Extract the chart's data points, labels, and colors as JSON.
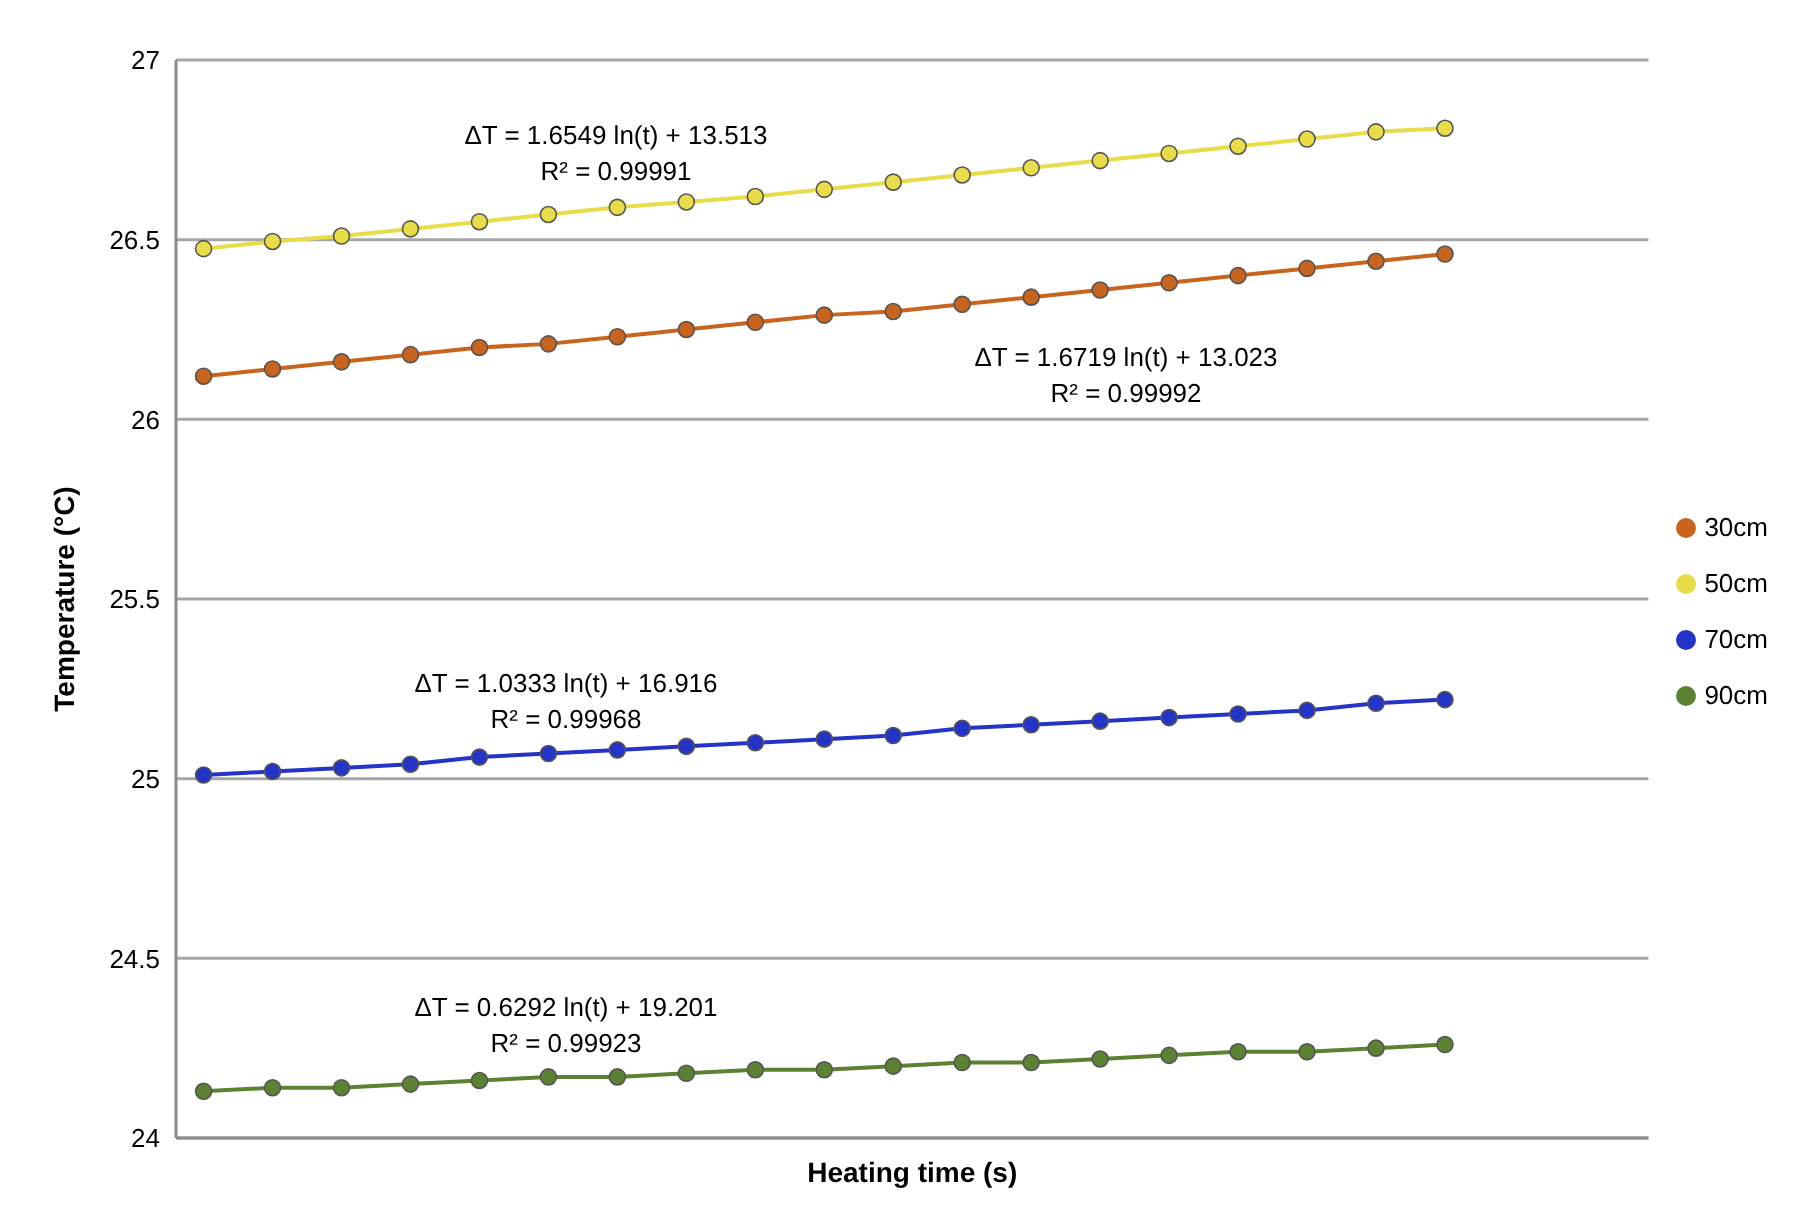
{
  "chart_data": {
    "type": "line",
    "xlabel": "Heating time (s)",
    "ylabel": "Temperature (°C)",
    "categories": [
      null,
      null,
      null,
      null,
      null,
      null,
      null,
      null,
      null,
      null,
      null,
      null,
      null,
      null,
      null,
      null,
      null,
      null,
      null
    ],
    "series": [
      {
        "name": "30cm",
        "color": "#c8641e",
        "values": [
          26.12,
          26.14,
          26.16,
          26.18,
          26.2,
          26.21,
          26.23,
          26.25,
          26.27,
          26.29,
          26.3,
          26.32,
          26.34,
          26.36,
          26.38,
          26.4,
          26.42,
          26.44,
          26.46
        ]
      },
      {
        "name": "50cm",
        "color": "#e8dc48",
        "values": [
          26.475,
          26.495,
          26.51,
          26.53,
          26.55,
          26.57,
          26.59,
          26.605,
          26.62,
          26.64,
          26.66,
          26.68,
          26.7,
          26.72,
          26.74,
          26.76,
          26.78,
          26.8,
          26.81
        ]
      },
      {
        "name": "70cm",
        "color": "#2434c8",
        "values": [
          25.01,
          25.02,
          25.03,
          25.04,
          25.06,
          25.07,
          25.08,
          25.09,
          25.1,
          25.11,
          25.12,
          25.14,
          25.15,
          25.16,
          25.17,
          25.18,
          25.19,
          25.21,
          25.22
        ]
      },
      {
        "name": "90cm",
        "color": "#5a8232",
        "values": [
          24.13,
          24.14,
          24.14,
          24.15,
          24.16,
          24.17,
          24.17,
          24.18,
          24.19,
          24.19,
          24.2,
          24.21,
          24.21,
          24.22,
          24.23,
          24.24,
          24.24,
          24.25,
          24.26
        ]
      }
    ],
    "ylim": [
      24,
      27
    ],
    "yticks": [
      24,
      24.5,
      25,
      25.5,
      26,
      26.5,
      27
    ],
    "grid": "y",
    "legend": "right",
    "marker": "circle",
    "line_style": "solid",
    "tick_labels": "y",
    "annotations": [
      "ΔT = 1.6549 ln(t) + 13.513",
      "R² = 0.99991",
      "ΔT = 1.6719 ln(t) + 13.023",
      "R² = 0.99992",
      "ΔT = 1.0333 ln(t) + 16.916",
      "R² = 0.99968",
      "ΔT = 0.6292 ln(t) + 19.201",
      "R² = 0.99923"
    ]
  }
}
